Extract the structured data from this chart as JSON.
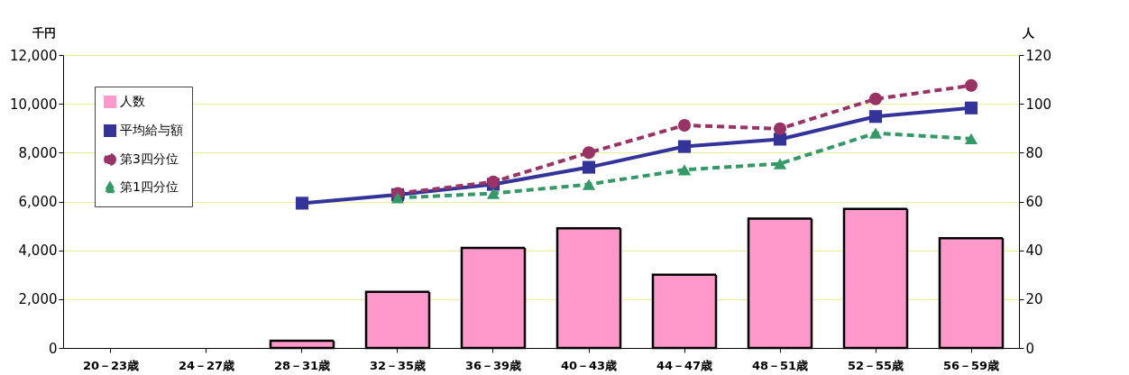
{
  "chart_data": {
    "type": "bar",
    "categories": [
      "20－23歳",
      "24－27歳",
      "28－31歳",
      "32－35歳",
      "36－39歳",
      "40－43歳",
      "44－47歳",
      "48－51歳",
      "52－55歳",
      "56－59歳"
    ],
    "series": [
      {
        "name": "人数",
        "axis": "y2",
        "color": "#ff99cc",
        "values": [
          null,
          null,
          3,
          23,
          41,
          49,
          30,
          53,
          57,
          45
        ]
      },
      {
        "name": "平均給与額",
        "type": "line",
        "color": "#333399",
        "marker": "square",
        "line_style": "solid",
        "values": [
          null,
          null,
          5930,
          6280,
          6700,
          7400,
          8250,
          8550,
          9480,
          9830
        ]
      },
      {
        "name": "第3四分位",
        "type": "line",
        "color": "#993366",
        "marker": "circle",
        "line_style": "dashed",
        "values": [
          null,
          null,
          null,
          6330,
          6800,
          8000,
          9120,
          8980,
          10200,
          10750
        ]
      },
      {
        "name": "第1四分位",
        "type": "line",
        "color": "#339966",
        "marker": "triangle",
        "line_style": "dashed",
        "values": [
          null,
          null,
          null,
          6150,
          6330,
          6700,
          7300,
          7550,
          8800,
          8570
        ]
      }
    ],
    "ylabel": "千円",
    "y2label": "人",
    "ylim": [
      0,
      12000
    ],
    "yticks": [
      0,
      {
        "value": 2000,
        "label": "2,000"
      },
      {
        "value": 4000,
        "label": "4,000"
      },
      {
        "value": 6000,
        "label": "6,000"
      },
      {
        "value": 8000,
        "label": "8,000"
      },
      {
        "value": 10000,
        "label": "10,000"
      },
      {
        "value": 12000,
        "label": "12,000"
      }
    ],
    "y2lim": [
      0,
      120
    ],
    "y2ticks": [
      0,
      20,
      40,
      60,
      80,
      100,
      120
    ],
    "grid": "y",
    "legend": "top left"
  }
}
